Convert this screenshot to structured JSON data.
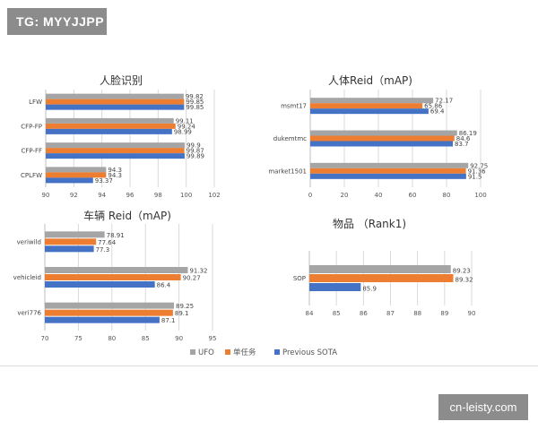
{
  "watermarks": {
    "top_left": "TG: MYYJJPP",
    "bottom_right": "cn-leisty.com"
  },
  "legend": {
    "placement": "bottom-center",
    "entries": [
      {
        "name": "UFO",
        "color": "#a5a5a5"
      },
      {
        "name": "单任务",
        "color": "#ed7d31"
      },
      {
        "name": "Previous SOTA",
        "color": "#4472c4"
      }
    ]
  },
  "chart_data": [
    {
      "type": "bar",
      "orientation": "horizontal",
      "title": "人脸识别",
      "categories": [
        "LFW",
        "CFP-FP",
        "CFP-FF",
        "CPLFW"
      ],
      "series": [
        {
          "name": "UFO",
          "values": [
            99.82,
            99.11,
            99.9,
            94.3
          ]
        },
        {
          "name": "单任务",
          "values": [
            99.85,
            99.24,
            99.87,
            94.3
          ]
        },
        {
          "name": "Previous SOTA",
          "values": [
            99.85,
            98.99,
            99.89,
            93.37
          ]
        }
      ],
      "xlim": [
        90,
        102
      ],
      "xticks": [
        "90",
        "92",
        "94",
        "96",
        "98",
        "100",
        "102"
      ],
      "grid": true
    },
    {
      "type": "bar",
      "orientation": "horizontal",
      "title": "人体Reid（mAP)",
      "categories": [
        "msmt17",
        "dukemtmc",
        "market1501"
      ],
      "series": [
        {
          "name": "UFO",
          "values": [
            72.17,
            86.19,
            92.75
          ]
        },
        {
          "name": "单任务",
          "values": [
            65.86,
            84.6,
            91.36
          ]
        },
        {
          "name": "Previous SOTA",
          "values": [
            69.4,
            83.7,
            91.5
          ]
        }
      ],
      "xlim": [
        0,
        100
      ],
      "xticks": [
        "0",
        "20",
        "40",
        "60",
        "80",
        "100"
      ],
      "grid": true
    },
    {
      "type": "bar",
      "orientation": "horizontal",
      "title": "车辆 Reid（mAP)",
      "categories": [
        "veriwild",
        "vehicleid",
        "veri776"
      ],
      "series": [
        {
          "name": "UFO",
          "values": [
            78.91,
            91.32,
            89.25
          ]
        },
        {
          "name": "单任务",
          "values": [
            77.64,
            90.27,
            89.1
          ]
        },
        {
          "name": "Previous SOTA",
          "values": [
            77.3,
            86.4,
            87.1
          ]
        }
      ],
      "xlim": [
        70,
        95
      ],
      "xticks": [
        "70",
        "75",
        "80",
        "85",
        "90",
        "95"
      ],
      "grid": true
    },
    {
      "type": "bar",
      "orientation": "horizontal",
      "title": "物品 （Rank1)",
      "categories": [
        "SOP"
      ],
      "series": [
        {
          "name": "UFO",
          "values": [
            89.23
          ]
        },
        {
          "name": "单任务",
          "values": [
            89.32
          ]
        },
        {
          "name": "Previous SOTA",
          "values": [
            85.9
          ]
        }
      ],
      "xlim": [
        84,
        90
      ],
      "xticks": [
        "84",
        "85",
        "86",
        "87",
        "88",
        "89",
        "90"
      ],
      "grid": true
    }
  ]
}
